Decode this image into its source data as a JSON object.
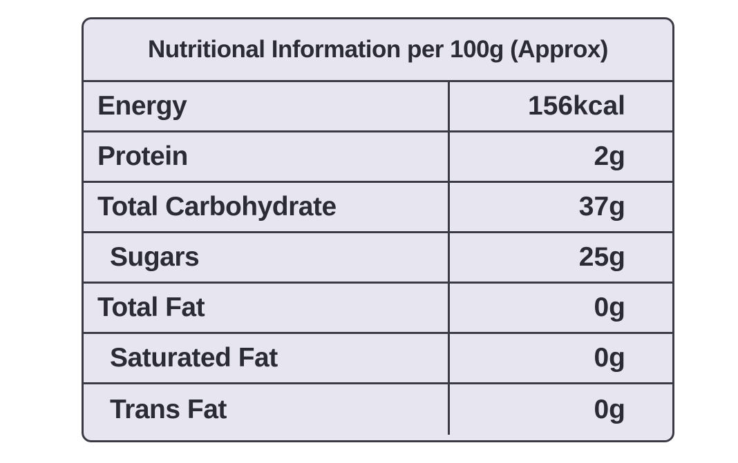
{
  "header": {
    "title": "Nutritional Information per 100g (Approx)"
  },
  "table": {
    "rows": [
      [
        "Energy",
        "156kcal"
      ],
      [
        "Protein",
        "2g"
      ],
      [
        "Total Carbohydrate",
        "37g"
      ],
      [
        "Sugars",
        "25g"
      ],
      [
        "Total Fat",
        "0g"
      ],
      [
        "Saturated Fat",
        "0g"
      ],
      [
        "Trans Fat",
        "0g"
      ]
    ]
  }
}
